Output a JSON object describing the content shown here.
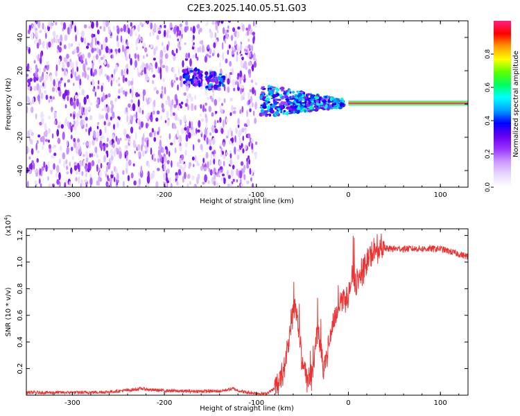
{
  "title": "C2E3.2025.140.05.51.G03",
  "chart_data": [
    {
      "type": "heatmap",
      "xlabel": "Height of straight line (km)",
      "ylabel": "Frequency (Hz)",
      "xlim": [
        -350,
        130
      ],
      "ylim": [
        -50,
        50
      ],
      "xticks": [
        -300,
        -200,
        -100,
        0,
        100
      ],
      "yticks": [
        -40,
        -20,
        0,
        20,
        40
      ],
      "colorbar": {
        "label": "Normalized spectral amplitude",
        "range": [
          0,
          1
        ],
        "ticks": [
          0.0,
          0.2,
          0.4,
          0.6,
          0.8
        ],
        "colors": [
          "#ffffff",
          "#e8d8ff",
          "#cc99ff",
          "#9933ff",
          "#6600ee",
          "#0000ff",
          "#00a0ff",
          "#00ffff",
          "#00ff60",
          "#60ff00",
          "#ffff00",
          "#ff9900",
          "#ff0000",
          "#ff2080"
        ]
      },
      "features": [
        {
          "name": "noise region",
          "x_range": [
            -350,
            -100
          ],
          "freq_range": [
            -50,
            50
          ],
          "amplitude": 0.2
        },
        {
          "name": "burst A",
          "x": -170,
          "freq": 16,
          "amplitude": 0.4
        },
        {
          "name": "burst B",
          "x": -145,
          "freq": 14,
          "amplitude": 0.45
        },
        {
          "name": "transition",
          "x_range": [
            -95,
            -5
          ],
          "freq_range": [
            -5,
            10
          ],
          "amplitude": 0.5
        },
        {
          "name": "carrier",
          "x_range": [
            0,
            130
          ],
          "freq": 0.5,
          "amplitude": 1.0
        }
      ]
    },
    {
      "type": "line",
      "xlabel": "Height of straight line (km)",
      "ylabel": "SNR (10 * v/v)",
      "scale_label": "(x10",
      "scale_exp": "4",
      "xlim": [
        -350,
        130
      ],
      "ylim": [
        0,
        1.25
      ],
      "xticks": [
        -300,
        -200,
        -100,
        0,
        100
      ],
      "yticks": [
        0.2,
        0.4,
        0.6,
        0.8,
        1.0,
        1.2
      ],
      "color": "#ee3333",
      "series": [
        {
          "x": [
            -350,
            -320,
            -290,
            -260,
            -235,
            -225,
            -215,
            -200,
            -180,
            -160,
            -140,
            -125,
            -120,
            -110,
            -100,
            -90,
            -80,
            -72,
            -66,
            -62,
            -58,
            -55,
            -52,
            -48,
            -44,
            -40,
            -36,
            -33,
            -30,
            -27,
            -24,
            -20,
            -16,
            -12,
            -8,
            -4,
            0,
            4,
            8,
            10,
            12,
            16,
            20,
            25,
            30,
            35,
            40,
            50,
            60,
            70,
            80,
            90,
            100,
            110,
            120,
            130
          ],
          "y": [
            0.02,
            0.02,
            0.02,
            0.025,
            0.04,
            0.05,
            0.04,
            0.035,
            0.03,
            0.03,
            0.03,
            0.05,
            0.035,
            0.02,
            0.015,
            0.01,
            0.05,
            0.15,
            0.35,
            0.55,
            0.7,
            0.55,
            0.35,
            0.2,
            0.1,
            0.15,
            0.35,
            0.5,
            0.4,
            0.2,
            0.25,
            0.45,
            0.55,
            0.65,
            0.7,
            0.75,
            0.72,
            0.9,
            0.8,
            0.95,
            0.85,
            0.92,
            1.0,
            1.05,
            1.08,
            1.1,
            1.1,
            1.1,
            1.1,
            1.1,
            1.1,
            1.1,
            1.1,
            1.08,
            1.06,
            1.04
          ]
        }
      ]
    }
  ]
}
